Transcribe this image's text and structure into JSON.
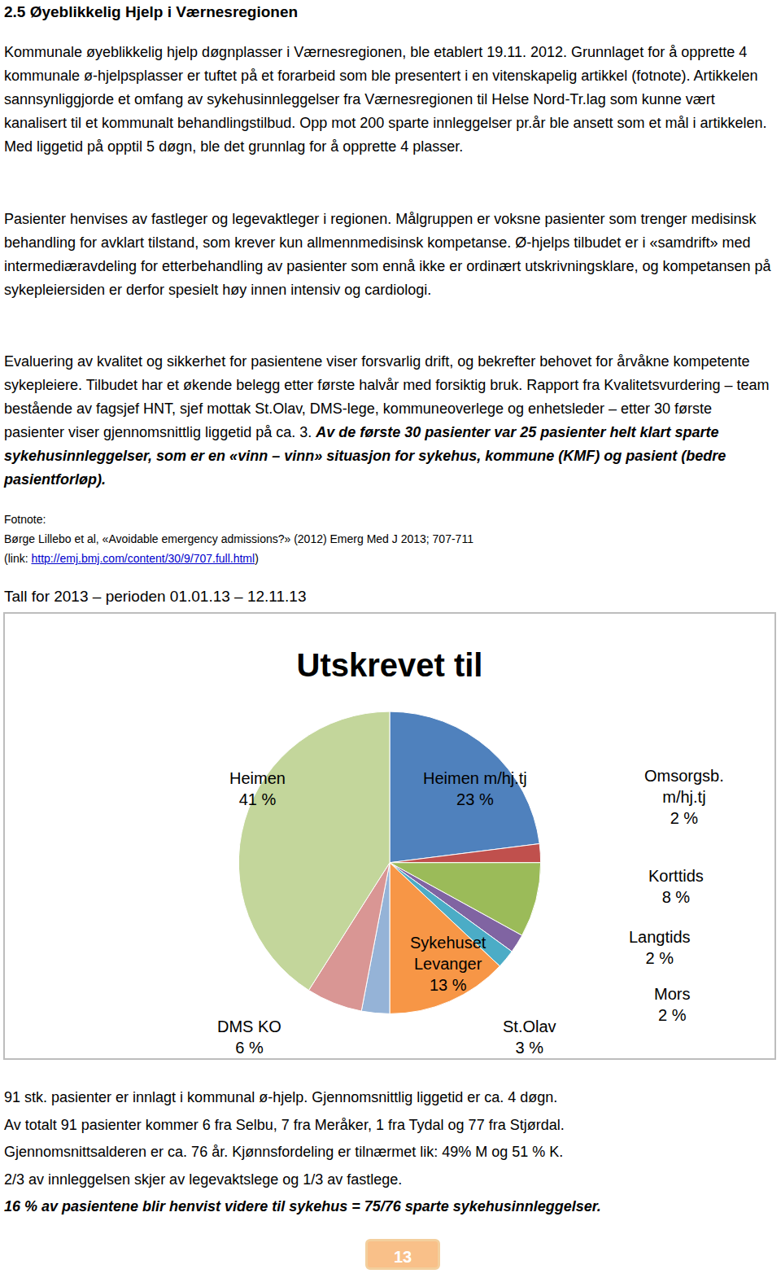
{
  "heading": "2.5 Øyeblikkelig Hjelp i Værnesregionen",
  "paragraphs": [
    "Kommunale øyeblikkelig hjelp døgnplasser i Værnesregionen, ble etablert 19.11. 2012. Grunnlaget for å opprette 4 kommunale ø-hjelpsplasser er tuftet på et forarbeid som ble presentert i en vitenskapelig artikkel (fotnote). Artikkelen sannsynliggjorde et omfang av sykehusinnleggelser fra Værnesregionen til Helse Nord-Tr.lag som kunne vært kanalisert til et kommunalt behandlingstilbud. Opp mot 200 sparte innleggelser pr.år ble ansett som et mål i artikkelen. Med liggetid på opptil 5 døgn, ble det grunnlag for å opprette 4 plasser.",
    "Pasienter henvises av fastleger og legevaktleger i regionen. Målgruppen er voksne pasienter som trenger medisinsk behandling for avklart tilstand, som krever kun allmennmedisinsk kompetanse. Ø-hjelps tilbudet er i «samdrift» med intermediæravdeling for etterbehandling av pasienter som ennå ikke er ordinært utskrivningsklare, og kompetansen på sykepleiersiden er derfor spesielt høy innen intensiv og cardiologi."
  ],
  "evaluation": {
    "text": "Evaluering av kvalitet og sikkerhet for pasientene viser forsvarlig drift, og bekrefter behovet for årvåkne kompetente sykepleiere. Tilbudet har et økende belegg etter første halvår med forsiktig bruk. Rapport fra Kvalitetsvurdering – team bestående av fagsjef HNT, sjef mottak St.Olav, DMS-lege, kommuneoverlege og enhetsleder – etter 30 første pasienter viser gjennomsnittlig liggetid på ca. 3. ",
    "emphasis": "Av de første 30 pasienter var 25 pasienter helt klart sparte sykehusinnleggelser, som er en «vinn – vinn» situasjon for sykehus, kommune (KMF) og pasient (bedre pasientforløp)."
  },
  "footnote": {
    "label": "Fotnote:",
    "text": "Børge Lillebo et al, «Avoidable emergency admissions?» (2012) Emerg Med J 2013; 707-711",
    "link_prefix": "(link: ",
    "link": "http://emj.bmj.com/content/30/9/707.full.html",
    "link_suffix": ")"
  },
  "caption": "Tall for 2013 – perioden 01.01.13 – 12.11.13",
  "chart_data": {
    "type": "pie",
    "title": "Utskrevet til",
    "categories": [
      "Heimen m/hj.tj",
      "Omsorgsb. m/hj.tj",
      "Korttids",
      "Langtids",
      "Mors",
      "Sykehuset Levanger",
      "St.Olav",
      "DMS KO",
      "Heimen"
    ],
    "values": [
      23,
      2,
      8,
      2,
      2,
      13,
      3,
      6,
      41
    ],
    "value_labels": [
      "23 %",
      "2 %",
      "8 %",
      "2 %",
      "2 %",
      "13 %",
      "3 %",
      "6 %",
      "41 %"
    ],
    "colors": [
      "#4f81bd",
      "#c0504d",
      "#9bbb59",
      "#8064a2",
      "#4bacc6",
      "#f79646",
      "#95b3d7",
      "#d99694",
      "#c3d69b"
    ],
    "data_labels": true
  },
  "summary": [
    "91 stk. pasienter er innlagt i kommunal ø-hjelp. Gjennomsnittlig liggetid er ca. 4 døgn.",
    "Av totalt 91 pasienter kommer 6 fra Selbu, 7 fra Meråker, 1 fra Tydal og 77 fra Stjørdal.",
    "Gjennomsnittsalderen er ca. 76 år. Kjønnsfordeling er tilnærmet lik: 49% M og 51 % K.",
    "2/3 av innleggelsen skjer av legevaktslege og 1/3 av fastlege."
  ],
  "summary_emphasis": "16 % av pasientene blir henvist videre til sykehus = 75/76 sparte sykehusinnleggelser.",
  "page_number": "13"
}
